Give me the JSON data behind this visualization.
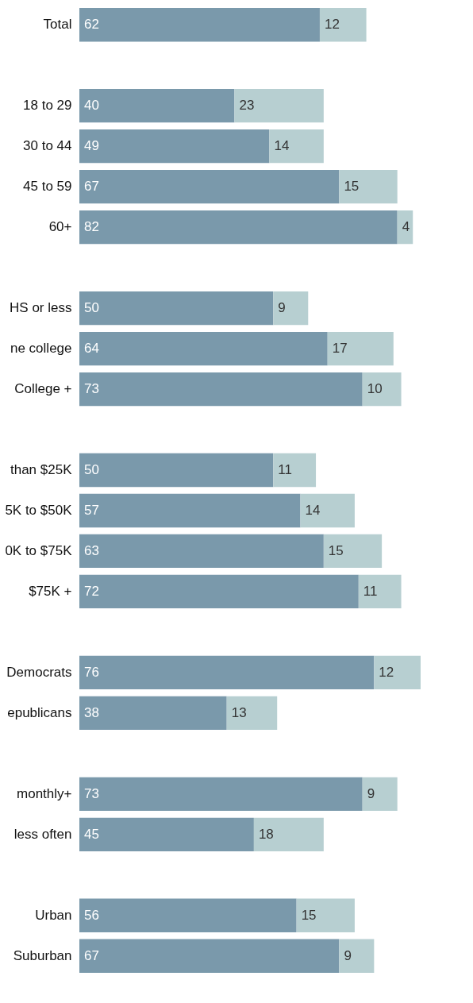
{
  "chart_data": {
    "type": "bar",
    "orientation": "horizontal",
    "stacked": true,
    "data_labels": true,
    "categories": [
      "Total",
      null,
      "18 to 29",
      "30 to 44",
      "45 to 59",
      "60+",
      null,
      "HS or less",
      "ne college",
      "College +",
      null,
      "than $25K",
      "5K to $50K",
      "0K to $75K",
      "$75K +",
      null,
      "Democrats",
      "epublicans",
      null,
      "monthly+",
      "less often",
      null,
      "Urban",
      "Suburban"
    ],
    "series": [
      {
        "color": "#7a99ab",
        "values": [
          62,
          null,
          40,
          49,
          67,
          82,
          null,
          50,
          64,
          73,
          null,
          50,
          57,
          63,
          72,
          null,
          76,
          38,
          null,
          73,
          45,
          null,
          56,
          67
        ]
      },
      {
        "color": "#b7cfd1",
        "values": [
          12,
          null,
          23,
          14,
          15,
          4,
          null,
          9,
          17,
          10,
          null,
          11,
          14,
          15,
          11,
          null,
          12,
          13,
          null,
          9,
          18,
          null,
          15,
          9
        ]
      }
    ]
  }
}
